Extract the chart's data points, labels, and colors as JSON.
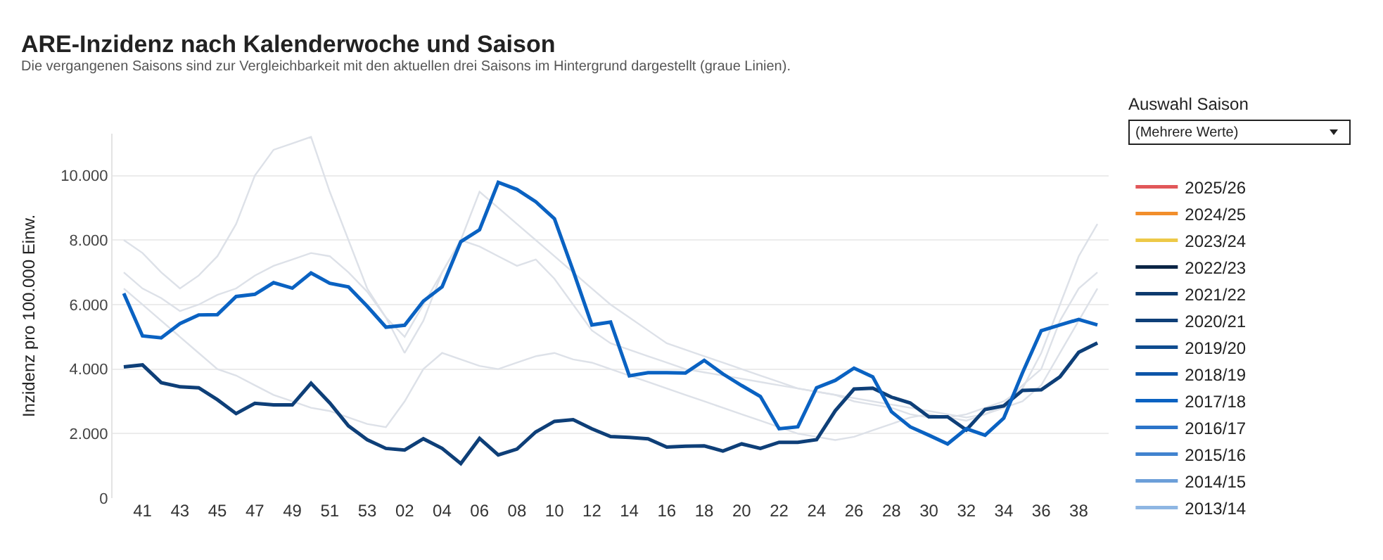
{
  "chart_data": {
    "type": "line",
    "title": "ARE-Inzidenz nach Kalenderwoche und Saison",
    "subtitle": "Die vergangenen Saisons sind zur Vergleichbarkeit mit den aktuellen drei Saisons im Hintergrund dargestellt (graue Linien).",
    "ylabel": "Inzidenz pro 100.000 Einw.",
    "legend_title": "Auswahl Saison",
    "annotations": [
      "(Mehrere Werte)"
    ],
    "categories": [
      null,
      "41",
      null,
      "43",
      null,
      "45",
      null,
      "47",
      null,
      "49",
      null,
      "51",
      null,
      "53",
      null,
      "02",
      null,
      "04",
      null,
      "06",
      null,
      "08",
      null,
      "10",
      null,
      "12",
      null,
      "14",
      null,
      "16",
      null,
      "18",
      null,
      "20",
      null,
      "22",
      null,
      "24",
      null,
      "26",
      null,
      "28",
      null,
      "30",
      null,
      "32",
      null,
      "34",
      null,
      "36",
      null,
      "38",
      null
    ],
    "ylim": [
      0,
      11300
    ],
    "yticks": [
      0,
      {
        "value": 2000,
        "label": "2.000"
      },
      {
        "value": 4000,
        "label": "4.000"
      },
      {
        "value": 6000,
        "label": "6.000"
      },
      {
        "value": 8000,
        "label": "8.000"
      },
      {
        "value": 10000,
        "label": "10.000"
      }
    ],
    "grid": "y",
    "legend": "right",
    "marker": "none",
    "line_style": "solid",
    "series": [
      {
        "color": "#dde1e8",
        "values": [
          8000,
          7600,
          7000,
          6500,
          6900,
          7500,
          8500,
          10000,
          10800,
          11000,
          11200,
          9500,
          8000,
          6500,
          5600,
          4500,
          5500,
          7000,
          8000,
          9500,
          9000,
          8500,
          8000,
          7500,
          7000,
          6500,
          6000,
          5600,
          5200,
          4800,
          4600,
          4400,
          4200,
          4000,
          3800,
          3600,
          3400,
          3300,
          3200,
          3000,
          2900,
          2800,
          2600,
          2500,
          2500,
          2600,
          2800,
          3000,
          3400,
          4500,
          6000,
          7500,
          8500
        ]
      },
      {
        "color": "#dde1e8",
        "values": [
          7000,
          6500,
          6200,
          5800,
          6000,
          6300,
          6500,
          6900,
          7200,
          7400,
          7600,
          7500,
          7000,
          6400,
          5600,
          5000,
          6000,
          7000,
          8000,
          7800,
          7500,
          7200,
          7400,
          6800,
          6000,
          5200,
          4800,
          4600,
          4400,
          4200,
          4000,
          3900,
          3800,
          3700,
          3600,
          3500,
          3400,
          3300,
          3200,
          3100,
          3000,
          2900,
          2800,
          2700,
          2600,
          2500,
          2600,
          2800,
          3000,
          3500,
          4500,
          5500,
          6500
        ]
      },
      {
        "color": "#dde1e8",
        "values": [
          6500,
          6000,
          5500,
          5000,
          4500,
          4000,
          3800,
          3500,
          3200,
          3000,
          2800,
          2700,
          2500,
          2300,
          2200,
          3000,
          4000,
          4500,
          4300,
          4100,
          4000,
          4200,
          4400,
          4500,
          4300,
          4200,
          4000,
          3800,
          3600,
          3400,
          3200,
          3000,
          2800,
          2600,
          2400,
          2200,
          2000,
          1900,
          1800,
          1900,
          2100,
          2300,
          2500,
          2600,
          2500,
          2400,
          2600,
          2900,
          3500,
          4000,
          5500,
          6500,
          7000
        ]
      },
      {
        "name": "2025/26",
        "color": "#e15759",
        "values": [
          null,
          null,
          null,
          null,
          null,
          null,
          null,
          null,
          null,
          null,
          null,
          null,
          null,
          null,
          null,
          null,
          null,
          null,
          null,
          null,
          null,
          null,
          null,
          null,
          null,
          null,
          null,
          null,
          null,
          null,
          null,
          null,
          null,
          null,
          null,
          null,
          null,
          null,
          null,
          null,
          null,
          null,
          null,
          null,
          null,
          null,
          null,
          null,
          null,
          null,
          null,
          null,
          null
        ]
      },
      {
        "name": "2024/25",
        "color": "#f28e2b",
        "values": [
          null,
          null,
          null,
          null,
          null,
          null,
          null,
          null,
          null,
          null,
          null,
          null,
          null,
          null,
          null,
          null,
          null,
          null,
          null,
          null,
          null,
          null,
          null,
          null,
          null,
          null,
          null,
          null,
          null,
          null,
          null,
          null,
          null,
          null,
          null,
          null,
          null,
          null,
          null,
          null,
          null,
          null,
          null,
          null,
          null,
          null,
          null,
          null,
          null,
          null,
          null,
          null,
          null
        ]
      },
      {
        "name": "2023/24",
        "color": "#edc948",
        "values": [
          null,
          null,
          null,
          null,
          null,
          null,
          null,
          null,
          null,
          null,
          null,
          null,
          null,
          null,
          null,
          null,
          null,
          null,
          null,
          null,
          null,
          null,
          null,
          null,
          null,
          null,
          null,
          null,
          null,
          null,
          null,
          null,
          null,
          null,
          null,
          null,
          null,
          null,
          null,
          null,
          null,
          null,
          null,
          null,
          null,
          null,
          null,
          null,
          null,
          null,
          null,
          null,
          null
        ]
      },
      {
        "name": "2022/23",
        "color": "#0b2545",
        "values": [
          null,
          null,
          null,
          null,
          null,
          null,
          null,
          null,
          null,
          null,
          null,
          null,
          null,
          null,
          null,
          null,
          null,
          null,
          null,
          null,
          null,
          null,
          null,
          null,
          null,
          null,
          null,
          null,
          null,
          null,
          null,
          null,
          null,
          null,
          null,
          null,
          null,
          null,
          null,
          null,
          null,
          null,
          null,
          null,
          null,
          null,
          null,
          null,
          null,
          null,
          null,
          null,
          null
        ]
      },
      {
        "name": "2021/22",
        "color": "#0d3a6e",
        "values": [
          null,
          null,
          null,
          null,
          null,
          null,
          null,
          null,
          null,
          null,
          null,
          null,
          null,
          null,
          null,
          null,
          null,
          null,
          null,
          null,
          null,
          null,
          null,
          null,
          null,
          null,
          null,
          null,
          null,
          null,
          null,
          null,
          null,
          null,
          null,
          null,
          null,
          null,
          null,
          null,
          null,
          null,
          null,
          null,
          null,
          null,
          null,
          null,
          null,
          null,
          null,
          null,
          null
        ]
      },
      {
        "name": "2020/21",
        "color": "#0e3f78",
        "values": [
          4070,
          4130,
          3580,
          3450,
          3420,
          3050,
          2620,
          2940,
          2890,
          2890,
          3560,
          2950,
          2240,
          1810,
          1540,
          1490,
          1840,
          1540,
          1070,
          1850,
          1340,
          1520,
          2050,
          2380,
          2430,
          2150,
          1910,
          1880,
          1840,
          1580,
          1610,
          1620,
          1460,
          1680,
          1540,
          1730,
          1730,
          1810,
          2710,
          3380,
          3410,
          3130,
          2950,
          2520,
          2520,
          2110,
          2750,
          2860,
          3340,
          3360,
          3760,
          4520,
          4810
        ]
      },
      {
        "name": "2019/20",
        "color": "#0f4c8f",
        "values": [
          null,
          null,
          null,
          null,
          null,
          null,
          null,
          null,
          null,
          null,
          null,
          null,
          null,
          null,
          null,
          null,
          null,
          null,
          null,
          null,
          null,
          null,
          null,
          null,
          null,
          null,
          null,
          null,
          null,
          null,
          null,
          null,
          null,
          null,
          null,
          null,
          null,
          null,
          null,
          null,
          null,
          null,
          null,
          null,
          null,
          null,
          null,
          null,
          null,
          null,
          null,
          null,
          null
        ]
      },
      {
        "name": "2018/19",
        "color": "#0d55a8",
        "values": [
          null,
          null,
          null,
          null,
          null,
          null,
          null,
          null,
          null,
          null,
          null,
          null,
          null,
          null,
          null,
          null,
          null,
          null,
          null,
          null,
          null,
          null,
          null,
          null,
          null,
          null,
          null,
          null,
          null,
          null,
          null,
          null,
          null,
          null,
          null,
          null,
          null,
          null,
          null,
          null,
          null,
          null,
          null,
          null,
          null,
          null,
          null,
          null,
          null,
          null,
          null,
          null,
          null
        ]
      },
      {
        "name": "2017/18",
        "color": "#0a62c2",
        "values": [
          6350,
          5030,
          4970,
          5410,
          5680,
          5690,
          6250,
          6320,
          6680,
          6510,
          6980,
          6660,
          6550,
          5950,
          5300,
          5360,
          6110,
          6550,
          7950,
          8320,
          9790,
          9570,
          9190,
          8660,
          7050,
          5370,
          5460,
          3790,
          3890,
          3890,
          3880,
          4270,
          3850,
          3490,
          3150,
          2150,
          2210,
          3420,
          3650,
          4030,
          3760,
          2680,
          2210,
          1950,
          1680,
          2150,
          1950,
          2480,
          3890,
          5190,
          5370,
          5540,
          5370
        ]
      },
      {
        "name": "2016/17",
        "color": "#2b74c9",
        "values": [
          null,
          null,
          null,
          null,
          null,
          null,
          null,
          null,
          null,
          null,
          null,
          null,
          null,
          null,
          null,
          null,
          null,
          null,
          null,
          null,
          null,
          null,
          null,
          null,
          null,
          null,
          null,
          null,
          null,
          null,
          null,
          null,
          null,
          null,
          null,
          null,
          null,
          null,
          null,
          null,
          null,
          null,
          null,
          null,
          null,
          null,
          null,
          null,
          null,
          null,
          null,
          null,
          null
        ]
      },
      {
        "name": "2015/16",
        "color": "#4183cf",
        "values": [
          null,
          null,
          null,
          null,
          null,
          null,
          null,
          null,
          null,
          null,
          null,
          null,
          null,
          null,
          null,
          null,
          null,
          null,
          null,
          null,
          null,
          null,
          null,
          null,
          null,
          null,
          null,
          null,
          null,
          null,
          null,
          null,
          null,
          null,
          null,
          null,
          null,
          null,
          null,
          null,
          null,
          null,
          null,
          null,
          null,
          null,
          null,
          null,
          null,
          null,
          null,
          null,
          null
        ]
      },
      {
        "name": "2014/15",
        "color": "#6c9fd9",
        "values": [
          null,
          null,
          null,
          null,
          null,
          null,
          null,
          null,
          null,
          null,
          null,
          null,
          null,
          null,
          null,
          null,
          null,
          null,
          null,
          null,
          null,
          null,
          null,
          null,
          null,
          null,
          null,
          null,
          null,
          null,
          null,
          null,
          null,
          null,
          null,
          null,
          null,
          null,
          null,
          null,
          null,
          null,
          null,
          null,
          null,
          null,
          null,
          null,
          null,
          null,
          null,
          null,
          null
        ]
      },
      {
        "name": "2013/14",
        "color": "#8eb6e3",
        "values": [
          null,
          null,
          null,
          null,
          null,
          null,
          null,
          null,
          null,
          null,
          null,
          null,
          null,
          null,
          null,
          null,
          null,
          null,
          null,
          null,
          null,
          null,
          null,
          null,
          null,
          null,
          null,
          null,
          null,
          null,
          null,
          null,
          null,
          null,
          null,
          null,
          null,
          null,
          null,
          null,
          null,
          null,
          null,
          null,
          null,
          null,
          null,
          null,
          null,
          null,
          null,
          null,
          null
        ]
      }
    ]
  }
}
